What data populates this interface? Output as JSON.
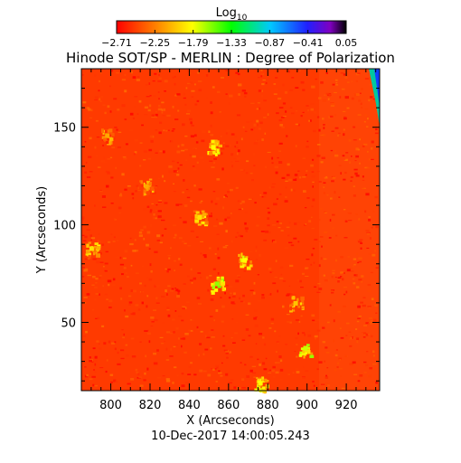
{
  "chart_data": {
    "type": "heatmap",
    "title": "Hinode SOT/SP - MERLIN : Degree of Polarization",
    "subtitle": "10-Dec-2017 14:00:05.243",
    "xlabel": "X (Arcseconds)",
    "ylabel": "Y (Arcseconds)",
    "xlim": [
      785,
      937
    ],
    "ylim": [
      15,
      180
    ],
    "x_ticks": [
      "800",
      "820",
      "840",
      "860",
      "880",
      "900",
      "920"
    ],
    "y_ticks": [
      "50",
      "100",
      "150"
    ],
    "colorbar": {
      "label": "Log",
      "label_subscript": "10",
      "tick_labels": [
        "−2.71",
        "−2.25",
        "−1.79",
        "−1.33",
        "−0.87",
        "−0.41",
        "0.05"
      ],
      "range": [
        -2.71,
        0.05
      ]
    },
    "background_level": -2.6,
    "hotspots": [
      {
        "x": 854,
        "y": 70,
        "level": -1.6
      },
      {
        "x": 868,
        "y": 82,
        "level": -1.8
      },
      {
        "x": 852,
        "y": 140,
        "level": -1.8
      },
      {
        "x": 899,
        "y": 37,
        "level": -1.7
      },
      {
        "x": 845,
        "y": 104,
        "level": -1.9
      },
      {
        "x": 790,
        "y": 88,
        "level": -1.9
      },
      {
        "x": 876,
        "y": 19,
        "level": -1.8
      },
      {
        "x": 894,
        "y": 60,
        "level": -2.0
      },
      {
        "x": 798,
        "y": 146,
        "level": -2.1
      },
      {
        "x": 818,
        "y": 120,
        "level": -2.1
      }
    ],
    "edge_feature": {
      "x_start": 930,
      "y_top": 180,
      "y_bottom": 155,
      "level": -0.9
    }
  }
}
